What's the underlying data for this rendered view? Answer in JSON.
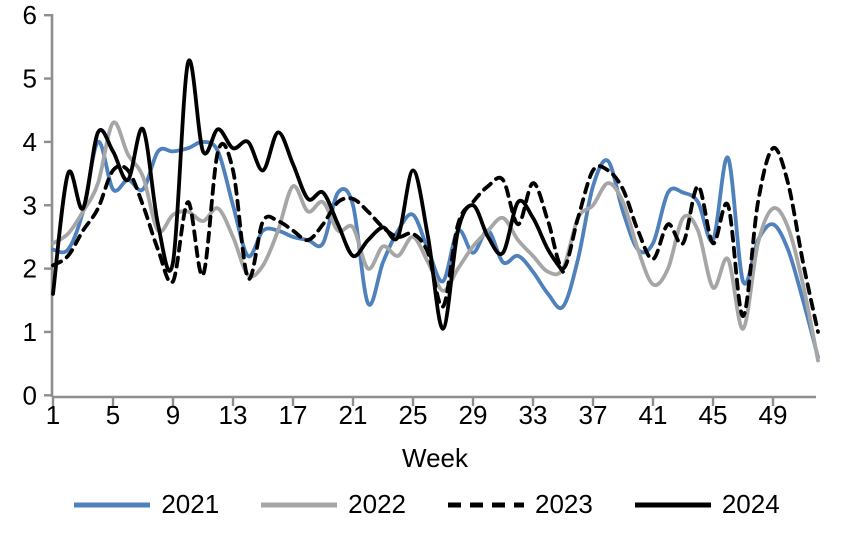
{
  "chart_data": {
    "type": "line",
    "title": "",
    "xlabel": "Week",
    "ylabel": "",
    "xlim": [
      1,
      52
    ],
    "ylim": [
      0,
      6
    ],
    "grid": false,
    "legend_position": "bottom",
    "axis_color": "#8e8e8e",
    "text_color": "#000000",
    "x_ticks": [
      1,
      5,
      9,
      13,
      17,
      21,
      25,
      29,
      33,
      37,
      41,
      45,
      49
    ],
    "y_ticks": [
      0,
      1,
      2,
      3,
      4,
      5,
      6
    ],
    "x": [
      1,
      2,
      3,
      4,
      5,
      6,
      7,
      8,
      9,
      10,
      11,
      12,
      13,
      14,
      15,
      16,
      17,
      18,
      19,
      20,
      21,
      22,
      23,
      24,
      25,
      26,
      27,
      28,
      29,
      30,
      31,
      32,
      33,
      34,
      35,
      36,
      37,
      38,
      39,
      40,
      41,
      42,
      43,
      44,
      45,
      46,
      47,
      48,
      49,
      50,
      51,
      52
    ],
    "series": [
      {
        "name": "2021",
        "color": "#4f81bd",
        "style": "solid",
        "values": [
          2.3,
          2.3,
          2.9,
          4.0,
          3.25,
          3.4,
          3.25,
          3.85,
          3.85,
          3.9,
          4.0,
          3.85,
          3.0,
          2.2,
          2.6,
          2.6,
          2.5,
          2.45,
          2.4,
          3.2,
          3.0,
          1.45,
          2.1,
          2.6,
          2.85,
          2.3,
          1.8,
          2.6,
          2.25,
          2.6,
          2.1,
          2.2,
          1.95,
          1.6,
          1.4,
          2.15,
          3.3,
          3.7,
          2.9,
          2.3,
          2.4,
          3.2,
          3.2,
          3.05,
          2.45,
          3.75,
          1.8,
          2.45,
          2.7,
          2.3,
          1.5,
          0.6
        ]
      },
      {
        "name": "2022",
        "color": "#a6a6a6",
        "style": "solid",
        "values": [
          2.4,
          2.55,
          2.9,
          3.35,
          4.3,
          3.8,
          3.45,
          2.6,
          2.85,
          2.9,
          2.75,
          2.95,
          2.5,
          1.9,
          2.05,
          2.6,
          3.3,
          2.9,
          3.05,
          2.6,
          2.65,
          2.0,
          2.35,
          2.2,
          2.5,
          2.1,
          1.65,
          2.0,
          2.35,
          2.6,
          2.8,
          2.45,
          2.2,
          1.95,
          2.0,
          2.8,
          3.0,
          3.35,
          3.05,
          2.3,
          1.75,
          2.0,
          2.8,
          2.6,
          1.7,
          2.15,
          1.05,
          2.4,
          2.95,
          2.65,
          1.75,
          0.55
        ]
      },
      {
        "name": "2023",
        "color": "#000000",
        "style": "dashed",
        "values": [
          2.05,
          2.2,
          2.6,
          2.95,
          3.55,
          3.55,
          3.0,
          2.3,
          1.8,
          3.05,
          1.9,
          3.85,
          3.55,
          1.85,
          2.75,
          2.75,
          2.6,
          2.45,
          2.7,
          3.05,
          3.1,
          2.9,
          2.65,
          2.5,
          2.55,
          2.25,
          1.4,
          2.7,
          3.05,
          3.3,
          3.4,
          2.7,
          3.35,
          2.75,
          2.0,
          2.8,
          3.55,
          3.55,
          3.25,
          2.6,
          2.15,
          2.7,
          2.4,
          3.3,
          2.4,
          3.0,
          1.25,
          3.05,
          3.9,
          3.35,
          2.1,
          1.0
        ]
      },
      {
        "name": "2024",
        "color": "#000000",
        "style": "solid",
        "values": [
          1.6,
          3.5,
          2.95,
          4.15,
          3.85,
          3.4,
          4.2,
          2.7,
          2.1,
          5.25,
          3.85,
          4.2,
          3.9,
          4.0,
          3.55,
          4.15,
          3.65,
          3.1,
          3.2,
          2.7,
          2.2,
          2.45,
          2.65,
          2.5,
          3.55,
          2.5,
          1.05,
          2.6,
          3.0,
          2.5,
          2.25,
          3.05,
          2.8,
          2.3,
          1.95
        ]
      }
    ]
  }
}
